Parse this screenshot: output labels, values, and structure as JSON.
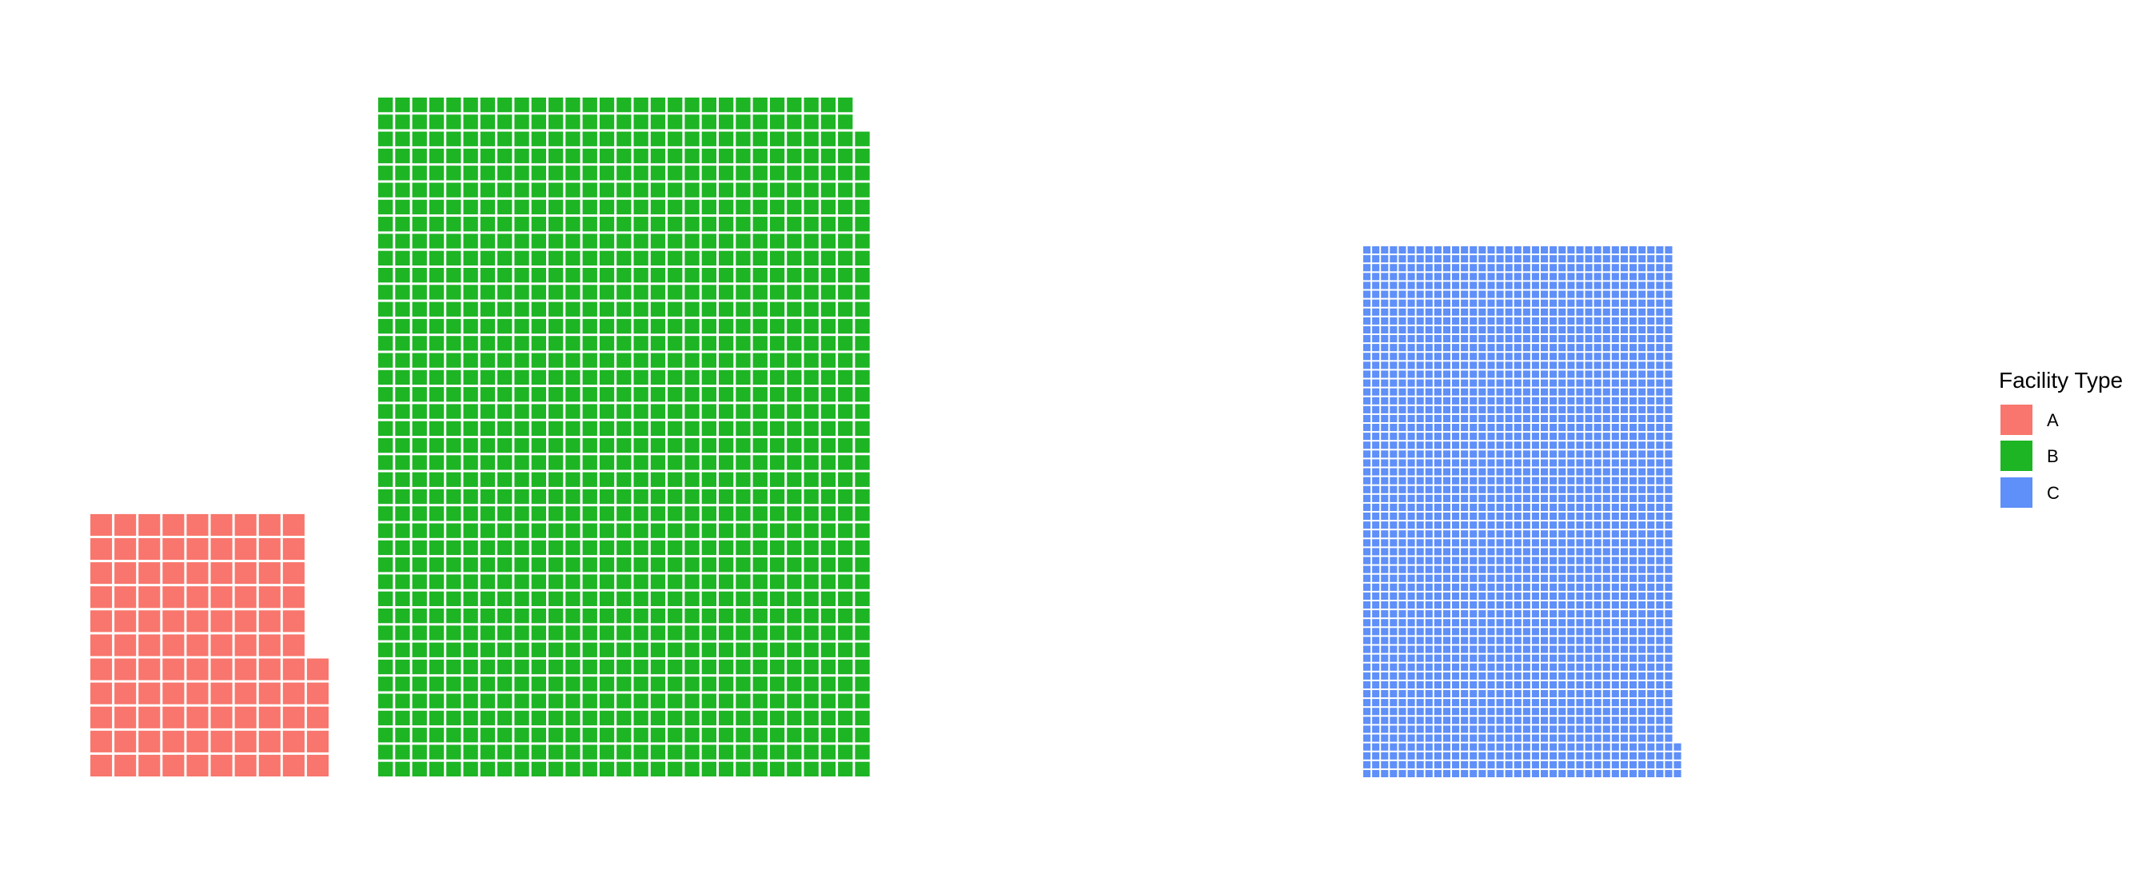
{
  "chart_data": {
    "type": "waffle",
    "unit_label": "",
    "series": [
      {
        "name": "A",
        "value": 104,
        "color": "#F8766D"
      },
      {
        "name": "B",
        "value": 1158,
        "color": "#1DB524"
      },
      {
        "name": "C",
        "value": 2104,
        "color": "#5F8FF8"
      }
    ],
    "grid": false,
    "legend": {
      "title": "Facility Type",
      "placement": "right",
      "items": [
        {
          "label": "A",
          "color": "#F8766D"
        },
        {
          "label": "B",
          "color": "#1DB524"
        },
        {
          "label": "C",
          "color": "#5F8FF8"
        }
      ]
    }
  }
}
